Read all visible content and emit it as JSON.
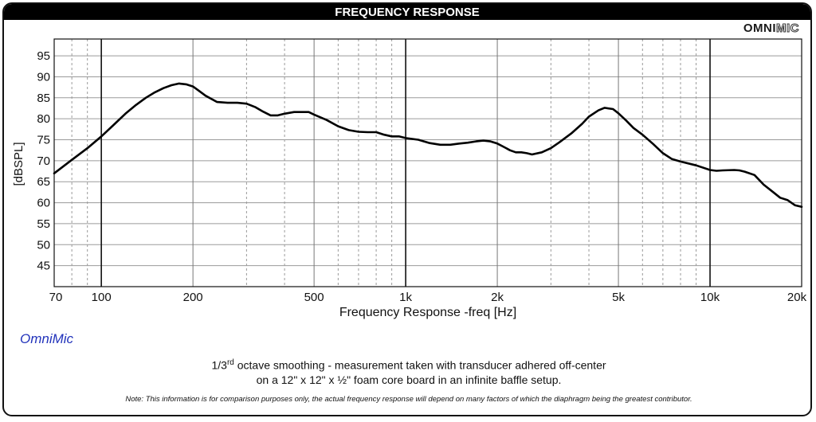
{
  "header": {
    "title": "FREQUENCY RESPONSE"
  },
  "brand": {
    "part1": "OMNI",
    "part2": "MIC"
  },
  "footer": {
    "label": "OmniMic",
    "caption_pre": "1/3",
    "caption_sup": "rd",
    "caption_line1_rest": " octave smoothing - measurement taken with transducer adhered off-center",
    "caption_line2": "on a 12\" x 12\" x ½\" foam core board in an infinite baffle setup.",
    "note": "Note: This information is for comparison purposes only, the actual frequency response will depend on many factors of which the diaphragm being the greatest contributor."
  },
  "chart_data": {
    "type": "line",
    "xlabel": "Frequency Response -freq [Hz]",
    "ylabel": "[dBSPL]",
    "x_scale": "log",
    "xlim": [
      70,
      20000
    ],
    "ylim": [
      40,
      99
    ],
    "x_ticks": [
      {
        "value": 70,
        "label": "70"
      },
      {
        "value": 100,
        "label": "100"
      },
      {
        "value": 200,
        "label": "200"
      },
      {
        "value": 500,
        "label": "500"
      },
      {
        "value": 1000,
        "label": "1k"
      },
      {
        "value": 2000,
        "label": "2k"
      },
      {
        "value": 5000,
        "label": "5k"
      },
      {
        "value": 10000,
        "label": "10k"
      },
      {
        "value": 20000,
        "label": "20k"
      }
    ],
    "y_ticks": [
      45,
      50,
      55,
      60,
      65,
      70,
      75,
      80,
      85,
      90,
      95
    ],
    "grid": true,
    "series": [
      {
        "x": [
          70,
          80,
          90,
          100,
          110,
          120,
          130,
          140,
          150,
          160,
          170,
          180,
          190,
          200,
          210,
          220,
          240,
          260,
          280,
          300,
          320,
          340,
          360,
          380,
          400,
          430,
          450,
          480,
          500,
          550,
          600,
          650,
          700,
          750,
          800,
          850,
          900,
          950,
          1000,
          1100,
          1200,
          1300,
          1400,
          1500,
          1600,
          1700,
          1800,
          1900,
          2000,
          2100,
          2200,
          2300,
          2400,
          2500,
          2600,
          2800,
          3000,
          3200,
          3500,
          3800,
          4000,
          4300,
          4500,
          4800,
          5000,
          5300,
          5600,
          6000,
          6500,
          7000,
          7500,
          8000,
          9000,
          10000,
          10500,
          11000,
          12000,
          12500,
          13000,
          14000,
          15000,
          16000,
          17000,
          18000,
          19000,
          20000
        ],
        "y": [
          67,
          70.2,
          73,
          75.8,
          78.6,
          81.2,
          83.3,
          85,
          86.3,
          87.3,
          88,
          88.4,
          88.2,
          87.7,
          86.6,
          85.5,
          84,
          83.8,
          83.8,
          83.6,
          82.8,
          81.7,
          80.8,
          80.8,
          81.2,
          81.6,
          81.6,
          81.6,
          81,
          79.7,
          78.2,
          77.3,
          76.9,
          76.8,
          76.8,
          76.2,
          75.8,
          75.8,
          75.4,
          75,
          74.2,
          73.8,
          73.8,
          74.1,
          74.3,
          74.6,
          74.8,
          74.6,
          74.1,
          73.3,
          72.5,
          72,
          72,
          71.8,
          71.5,
          72,
          73,
          74.4,
          76.5,
          78.8,
          80.5,
          82,
          82.6,
          82.3,
          81.3,
          79.6,
          77.8,
          76.2,
          74,
          71.8,
          70.4,
          69.8,
          68.9,
          67.8,
          67.6,
          67.7,
          67.8,
          67.7,
          67.4,
          66.6,
          64.3,
          62.7,
          61.2,
          60.6,
          59.4,
          59
        ]
      }
    ]
  }
}
